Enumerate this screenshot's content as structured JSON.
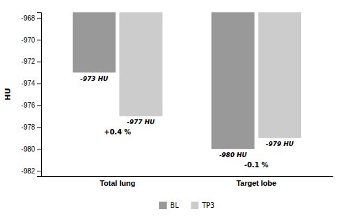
{
  "chart_data": {
    "type": "bar",
    "categories": [
      "Total lung",
      "Target lobe"
    ],
    "series": [
      {
        "name": "BL",
        "color": "#999999",
        "values": [
          -973,
          -980
        ],
        "value_labels": [
          "-973 HU",
          "-980 HU"
        ]
      },
      {
        "name": "TP3",
        "color": "#cccccc",
        "values": [
          -977,
          -979
        ],
        "value_labels": [
          "-977 HU",
          "-979 HU"
        ]
      }
    ],
    "ylabel": "HU",
    "ylim": [
      -982.5,
      -967.5
    ],
    "yticks": [
      -982,
      -980,
      -978,
      -976,
      -974,
      -972,
      -970,
      -968
    ],
    "annotations": [
      "+0.4 %",
      "-0.1 %"
    ],
    "data_labels": true,
    "grid": false,
    "legend": "bottom"
  }
}
